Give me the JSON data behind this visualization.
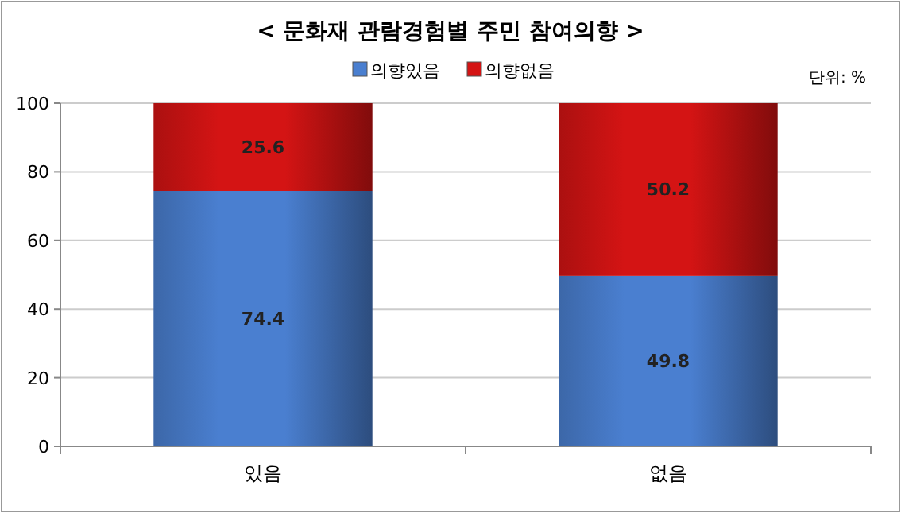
{
  "chart_data": {
    "type": "bar",
    "title": "< 문화재 관람경험별 주민 참여의향 >",
    "annotations": [
      "단위: %"
    ],
    "categories": [
      "있음",
      "없음"
    ],
    "series": [
      {
        "name": "의향있음",
        "color": "#4a7fd0",
        "values": [
          74.4,
          49.8
        ]
      },
      {
        "name": "의향없음",
        "color": "#d41414",
        "values": [
          25.6,
          50.2
        ]
      }
    ],
    "stacked": true,
    "data_labels": true,
    "ylim": [
      0,
      100
    ],
    "yticks": [
      0,
      20,
      40,
      60,
      80,
      100
    ],
    "grid": "y",
    "legend": "top"
  }
}
